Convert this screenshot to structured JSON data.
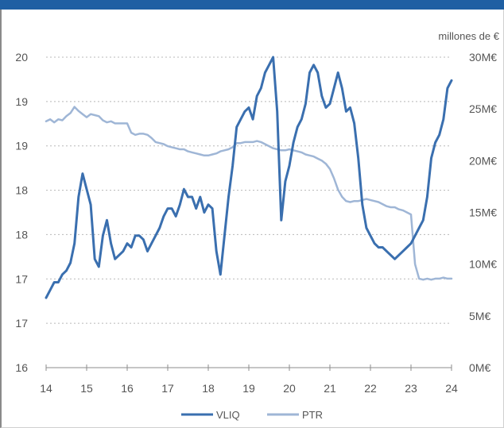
{
  "chart_data": {
    "type": "line",
    "x_ticks": [
      "14",
      "15",
      "16",
      "17",
      "18",
      "19",
      "20",
      "21",
      "22",
      "23",
      "24"
    ],
    "y_left_ticks": [
      "16",
      "17",
      "17",
      "18",
      "18",
      "19",
      "19",
      "20"
    ],
    "y_right_ticks": [
      "0M€",
      "5M€",
      "10M€",
      "15M€",
      "20M€",
      "25M€",
      "30M€"
    ],
    "y_left_range": [
      16,
      20
    ],
    "y_right_range": [
      0,
      30
    ],
    "right_axis_unit": "millones de €",
    "grid": "horizontal dashed",
    "legend_position": "bottom",
    "series": [
      {
        "name": "VLIQ",
        "axis": "left",
        "color": "#3a6faf",
        "x": [
          14.0,
          14.1,
          14.2,
          14.3,
          14.4,
          14.5,
          14.6,
          14.7,
          14.8,
          14.9,
          15.0,
          15.1,
          15.2,
          15.3,
          15.4,
          15.5,
          15.6,
          15.7,
          15.8,
          15.9,
          16.0,
          16.1,
          16.2,
          16.3,
          16.4,
          16.5,
          16.6,
          16.7,
          16.8,
          16.9,
          17.0,
          17.1,
          17.2,
          17.3,
          17.4,
          17.5,
          17.6,
          17.7,
          17.8,
          17.9,
          18.0,
          18.1,
          18.2,
          18.3,
          18.4,
          18.5,
          18.6,
          18.7,
          18.8,
          18.9,
          19.0,
          19.1,
          19.2,
          19.3,
          19.4,
          19.5,
          19.6,
          19.7,
          19.8,
          19.9,
          20.0,
          20.1,
          20.2,
          20.3,
          20.4,
          20.5,
          20.6,
          20.7,
          20.8,
          20.9,
          21.0,
          21.1,
          21.2,
          21.3,
          21.4,
          21.5,
          21.6,
          21.7,
          21.8,
          21.9,
          22.0,
          22.1,
          22.2,
          22.3,
          22.4,
          22.5,
          22.6,
          22.7,
          22.8,
          22.9,
          23.0,
          23.1,
          23.2,
          23.3,
          23.4,
          23.5,
          23.6,
          23.7,
          23.8,
          23.9,
          24.0
        ],
        "values": [
          16.9,
          17.0,
          17.1,
          17.1,
          17.2,
          17.25,
          17.35,
          17.6,
          18.2,
          18.5,
          18.3,
          18.1,
          17.4,
          17.3,
          17.7,
          17.9,
          17.6,
          17.4,
          17.45,
          17.5,
          17.6,
          17.55,
          17.7,
          17.7,
          17.65,
          17.5,
          17.6,
          17.7,
          17.8,
          17.95,
          18.05,
          18.05,
          17.95,
          18.1,
          18.3,
          18.2,
          18.2,
          18.05,
          18.2,
          18.0,
          18.1,
          18.05,
          17.5,
          17.2,
          17.7,
          18.2,
          18.6,
          19.1,
          19.2,
          19.3,
          19.35,
          19.2,
          19.5,
          19.6,
          19.8,
          19.9,
          20.0,
          19.3,
          17.9,
          18.4,
          18.6,
          18.9,
          19.1,
          19.2,
          19.4,
          19.8,
          19.9,
          19.8,
          19.5,
          19.35,
          19.4,
          19.6,
          19.8,
          19.6,
          19.3,
          19.35,
          19.15,
          18.7,
          18.1,
          17.8,
          17.7,
          17.6,
          17.55,
          17.55,
          17.5,
          17.45,
          17.4,
          17.45,
          17.5,
          17.55,
          17.6,
          17.7,
          17.8,
          17.9,
          18.2,
          18.7,
          18.9,
          19.0,
          19.2,
          19.6,
          19.7
        ]
      },
      {
        "name": "PTR",
        "axis": "right",
        "color": "#9fb6d6",
        "x": [
          14.0,
          14.1,
          14.2,
          14.3,
          14.4,
          14.5,
          14.6,
          14.7,
          14.8,
          14.9,
          15.0,
          15.1,
          15.2,
          15.3,
          15.4,
          15.5,
          15.6,
          15.7,
          15.8,
          15.9,
          16.0,
          16.1,
          16.2,
          16.3,
          16.4,
          16.5,
          16.6,
          16.7,
          16.8,
          16.9,
          17.0,
          17.1,
          17.2,
          17.3,
          17.4,
          17.5,
          17.6,
          17.7,
          17.8,
          17.9,
          18.0,
          18.1,
          18.2,
          18.3,
          18.4,
          18.5,
          18.6,
          18.7,
          18.8,
          18.9,
          19.0,
          19.1,
          19.2,
          19.3,
          19.4,
          19.5,
          19.6,
          19.7,
          19.8,
          19.9,
          20.0,
          20.1,
          20.2,
          20.3,
          20.4,
          20.5,
          20.6,
          20.7,
          20.8,
          20.9,
          21.0,
          21.1,
          21.2,
          21.3,
          21.4,
          21.5,
          21.6,
          21.7,
          21.8,
          21.9,
          22.0,
          22.1,
          22.2,
          22.3,
          22.4,
          22.5,
          22.6,
          22.7,
          22.8,
          22.9,
          23.0,
          23.1,
          23.2,
          23.3,
          23.4,
          23.5,
          23.6,
          23.7,
          23.8,
          23.9,
          24.0
        ],
        "values": [
          23.8,
          24.0,
          23.7,
          24.0,
          23.9,
          24.3,
          24.6,
          25.2,
          24.8,
          24.5,
          24.2,
          24.5,
          24.4,
          24.3,
          23.9,
          23.7,
          23.8,
          23.6,
          23.6,
          23.6,
          23.6,
          22.7,
          22.5,
          22.6,
          22.6,
          22.5,
          22.2,
          21.8,
          21.7,
          21.6,
          21.4,
          21.3,
          21.2,
          21.1,
          21.1,
          20.9,
          20.8,
          20.7,
          20.6,
          20.5,
          20.5,
          20.6,
          20.7,
          20.9,
          21.0,
          21.1,
          21.3,
          21.7,
          21.7,
          21.8,
          21.8,
          21.8,
          21.9,
          21.8,
          21.6,
          21.4,
          21.2,
          21.1,
          21.0,
          21.0,
          21.1,
          21.0,
          20.9,
          20.8,
          20.6,
          20.5,
          20.4,
          20.2,
          20.0,
          19.7,
          19.2,
          18.3,
          17.2,
          16.5,
          16.1,
          16.0,
          16.1,
          16.1,
          16.2,
          16.3,
          16.2,
          16.1,
          16.0,
          15.8,
          15.6,
          15.5,
          15.5,
          15.3,
          15.2,
          15.0,
          14.8,
          10.0,
          8.6,
          8.5,
          8.6,
          8.5,
          8.6,
          8.6,
          8.7,
          8.6,
          8.6
        ]
      }
    ]
  }
}
